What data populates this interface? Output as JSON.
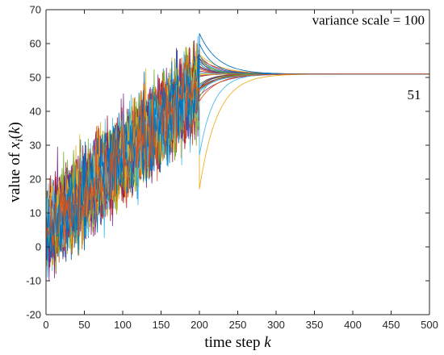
{
  "chart_data": {
    "type": "line",
    "title": "",
    "xlabel": {
      "text": "time step ",
      "var": "k"
    },
    "ylabel": {
      "prefix": "value of ",
      "var": "x",
      "sub": "i",
      "open": "(",
      "arg": "k",
      "close": ")"
    },
    "xlim": [
      0,
      500
    ],
    "ylim": [
      -20,
      70
    ],
    "xticks": [
      0,
      50,
      100,
      150,
      200,
      250,
      300,
      350,
      400,
      450,
      500
    ],
    "yticks": [
      -20,
      -10,
      0,
      10,
      20,
      30,
      40,
      50,
      60,
      70
    ],
    "grid": false,
    "legend": "none",
    "annotations": [
      {
        "text": "variance scale = 100",
        "x": 500,
        "y": 67,
        "position": "top-right"
      },
      {
        "text": "51",
        "x": 480,
        "y": 45
      }
    ],
    "consensus_value": 51,
    "noise_phase_end_step": 200,
    "trend_start": [
      0,
      5
    ],
    "trend_end": [
      200,
      48
    ],
    "series_count": 40,
    "series_colors": [
      "#0072BD",
      "#D95319",
      "#EDB120",
      "#7E2F8E",
      "#77AC30",
      "#4DBEEE",
      "#A2142F"
    ],
    "highlight_traces": [
      {
        "color": "#EDB120",
        "start_value": 17,
        "description": "dip"
      },
      {
        "color": "#4DBEEE",
        "start_value": 27,
        "description": "dip"
      },
      {
        "color": "#0072BD",
        "start_value": 63,
        "description": "peak"
      },
      {
        "color": "#0072BD",
        "start_value": 60,
        "description": "peak"
      },
      {
        "color": "#D95319",
        "start_value": 43,
        "description": "dip"
      }
    ]
  }
}
